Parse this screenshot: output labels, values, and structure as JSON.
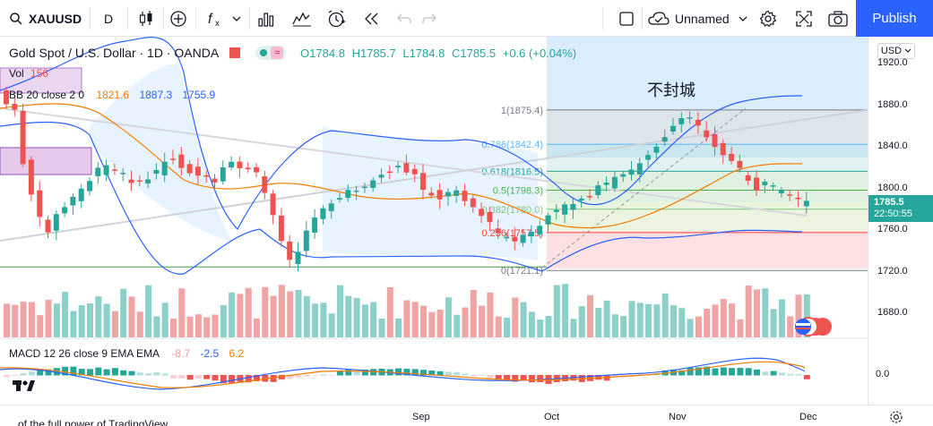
{
  "toolbar": {
    "symbol": "XAUUSD",
    "interval": "D",
    "layout_name": "Unnamed",
    "publish_label": "Publish"
  },
  "legend": {
    "title": "Gold Spot / U.S. Dollar · 1D · OANDA",
    "ohlc": {
      "open": "O1784.8",
      "high": "H1785.7",
      "low": "L1784.8",
      "close": "C1785.5",
      "change": "+0.6 (+0.04%)"
    },
    "vol": {
      "label": "Vol",
      "value": "156"
    },
    "bb": {
      "label": "BB 20 close 2 0",
      "basis": "1821.6",
      "upper": "1887.3",
      "lower": "1755.9"
    },
    "macd": {
      "label": "MACD 12 26 close 9 EMA EMA",
      "hist": "-8.7",
      "macd": "-2.5",
      "signal": "6.2"
    }
  },
  "annotation": "不封城",
  "fib_levels": [
    {
      "label": "1(1875.4)",
      "price": 1875.4
    },
    {
      "label": "0.786(1842.4)",
      "price": 1842.4
    },
    {
      "label": "0.618(1816.5)",
      "price": 1816.5
    },
    {
      "label": "0.5(1798.3)",
      "price": 1798.3
    },
    {
      "label": "0.382(1780.0)",
      "price": 1780.0
    },
    {
      "label": "0.236(1757.5)",
      "price": 1757.5
    },
    {
      "label": "0(1721.1)",
      "price": 1721.1
    }
  ],
  "price_scale": {
    "currency": "USD",
    "ticks": [
      "1920.0",
      "1880.0",
      "1840.0",
      "1800.0",
      "1760.0",
      "1720.0",
      "1680.0"
    ],
    "last_price": "1785.5",
    "countdown": "22:50:55",
    "macd_tick": "0.0"
  },
  "time_axis": {
    "labels": [
      "Sep",
      "Oct",
      "Nov",
      "Dec"
    ]
  },
  "footer_text": "...of the full power of TradingView",
  "colors": {
    "up": "#26a69a",
    "down": "#ef5350",
    "bb": "#2962ff",
    "basis": "#f57c00",
    "accent": "#2962ff"
  }
}
